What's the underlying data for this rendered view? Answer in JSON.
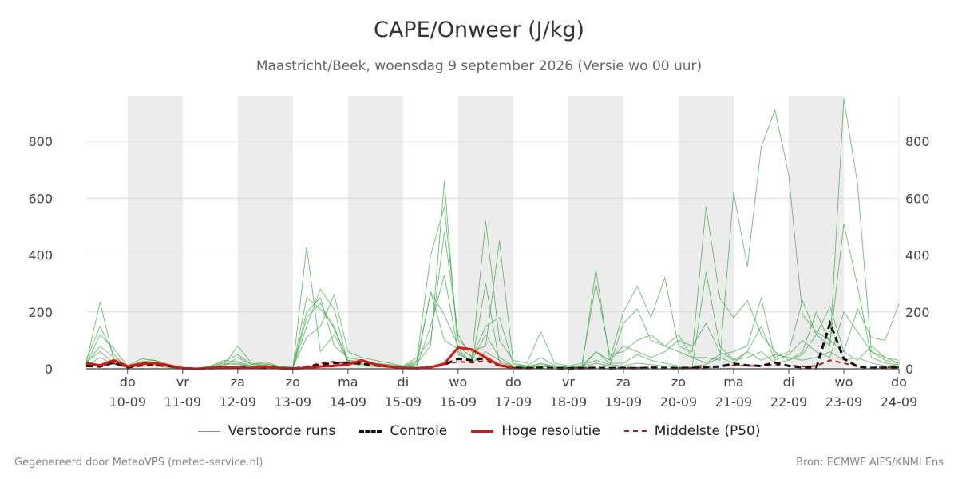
{
  "chart_data": {
    "type": "line",
    "title": "CAPE/Onweer (J/kg)",
    "subtitle": "Maastricht/Beek, woensdag  9 september 2026 (Versie wo 00 uur)",
    "xlabel": "",
    "ylabel": "",
    "ylim": [
      0,
      960
    ],
    "xlim": [
      -0.75,
      14
    ],
    "yticks": [
      0,
      200,
      400,
      600,
      800
    ],
    "grid": true,
    "legend_position": "bottom",
    "x_tick_days": [
      "do",
      "vr",
      "za",
      "zo",
      "ma",
      "di",
      "wo",
      "do",
      "vr",
      "za",
      "zo",
      "ma",
      "di",
      "wo",
      "do"
    ],
    "x_tick_dates": [
      "10-09",
      "11-09",
      "12-09",
      "13-09",
      "14-09",
      "15-09",
      "16-09",
      "17-09",
      "18-09",
      "19-09",
      "20-09",
      "21-09",
      "22-09",
      "23-09",
      "24-09"
    ],
    "shaded_days": [
      0,
      2,
      4,
      6,
      8,
      10,
      12
    ],
    "series": [
      {
        "name": "Controle",
        "style": "dashed",
        "color": "#111111",
        "x": [
          -0.75,
          -0.5,
          -0.25,
          0,
          0.25,
          0.5,
          0.75,
          1,
          1.25,
          1.5,
          1.75,
          2,
          2.25,
          2.5,
          2.75,
          3,
          3.25,
          3.5,
          3.75,
          4,
          4.25,
          4.5,
          4.75,
          5,
          5.25,
          5.5,
          5.75,
          6,
          6.25,
          6.5,
          6.75,
          7,
          7.25,
          7.5,
          7.75,
          8,
          8.25,
          8.5,
          8.75,
          9,
          9.25,
          9.5,
          9.75,
          10,
          10.25,
          10.5,
          10.75,
          11,
          11.25,
          11.5,
          11.75,
          12,
          12.25,
          12.5,
          12.75,
          13,
          13.25,
          13.5,
          13.75,
          14
        ],
        "values": [
          10,
          8,
          22,
          5,
          12,
          14,
          10,
          2,
          0,
          2,
          3,
          5,
          3,
          6,
          2,
          1,
          4,
          15,
          20,
          22,
          18,
          12,
          8,
          3,
          2,
          6,
          15,
          35,
          30,
          38,
          12,
          3,
          2,
          4,
          2,
          1,
          2,
          3,
          2,
          3,
          2,
          4,
          3,
          2,
          3,
          6,
          8,
          18,
          12,
          10,
          22,
          10,
          5,
          4,
          160,
          35,
          8,
          3,
          4,
          6
        ]
      },
      {
        "name": "Hoge resolutie",
        "style": "solid",
        "color": "#e0140d",
        "x": [
          -0.75,
          -0.5,
          -0.25,
          0,
          0.25,
          0.5,
          0.75,
          1,
          1.25,
          1.5,
          1.75,
          2,
          2.25,
          2.5,
          2.75,
          3,
          3.25,
          3.5,
          3.75,
          4,
          4.25,
          4.5,
          4.75,
          5,
          5.25,
          5.5,
          5.75,
          6,
          6.25,
          6.5,
          6.75,
          7
        ],
        "values": [
          20,
          12,
          30,
          8,
          18,
          20,
          12,
          2,
          0,
          3,
          6,
          4,
          3,
          8,
          2,
          1,
          3,
          8,
          10,
          15,
          30,
          15,
          8,
          3,
          2,
          5,
          18,
          75,
          68,
          40,
          12,
          4
        ]
      },
      {
        "name": "Middelste (P50)",
        "style": "dashed",
        "color": "#b31b1b",
        "x": [
          -0.75,
          -0.5,
          -0.25,
          0,
          0.25,
          0.5,
          0.75,
          1,
          1.25,
          1.5,
          1.75,
          2,
          2.25,
          2.5,
          2.75,
          3,
          3.25,
          3.5,
          3.75,
          4,
          4.25,
          4.5,
          4.75,
          5,
          5.25,
          5.5,
          5.75,
          6,
          6.25,
          6.5,
          6.75,
          7,
          7.25,
          7.5,
          7.75,
          8,
          8.25,
          8.5,
          8.75,
          9,
          9.25,
          9.5,
          9.75,
          10,
          10.25,
          10.5,
          10.75,
          11,
          11.25,
          11.5,
          11.75,
          12,
          12.25,
          12.5,
          12.75,
          13,
          13.25,
          13.5,
          13.75,
          14
        ],
        "values": [
          15,
          10,
          20,
          6,
          12,
          15,
          10,
          2,
          0,
          2,
          5,
          6,
          4,
          6,
          3,
          2,
          8,
          20,
          25,
          18,
          20,
          12,
          6,
          3,
          2,
          5,
          15,
          25,
          22,
          28,
          10,
          4,
          2,
          4,
          3,
          2,
          3,
          4,
          3,
          4,
          3,
          5,
          4,
          3,
          4,
          6,
          8,
          12,
          10,
          10,
          15,
          12,
          8,
          10,
          30,
          20,
          8,
          4,
          5,
          6
        ]
      },
      {
        "name": "Verstoorde runs",
        "style": "thin",
        "color": "#3aa845",
        "x": [
          -0.75,
          -0.5,
          -0.25,
          0,
          0.25,
          0.5,
          0.75,
          1,
          1.25,
          1.5,
          1.75,
          2,
          2.25,
          2.5,
          2.75,
          3,
          3.25,
          3.5,
          3.75,
          4,
          4.25,
          4.5,
          4.75,
          5,
          5.25,
          5.5,
          5.75,
          6,
          6.25,
          6.5,
          6.75,
          7,
          7.25,
          7.5,
          7.75,
          8,
          8.25,
          8.5,
          8.75,
          9,
          9.25,
          9.5,
          9.75,
          10,
          10.25,
          10.5,
          10.75,
          11,
          11.25,
          11.5,
          11.75,
          12,
          12.25,
          12.5,
          12.75,
          13,
          13.25,
          13.5,
          13.75,
          14
        ],
        "runs": [
          [
            20,
            235,
            30,
            10,
            25,
            30,
            15,
            2,
            0,
            8,
            20,
            15,
            10,
            12,
            5,
            3,
            430,
            60,
            120,
            30,
            20,
            15,
            10,
            5,
            20,
            80,
            660,
            50,
            30,
            120,
            40,
            10,
            5,
            20,
            8,
            5,
            10,
            30,
            15,
            10,
            20,
            15,
            10,
            5,
            10,
            15,
            40,
            20,
            60,
            30,
            50,
            40,
            30,
            40,
            60,
            30,
            40,
            20,
            10,
            15
          ],
          [
            30,
            150,
            50,
            5,
            20,
            25,
            10,
            1,
            0,
            5,
            15,
            80,
            20,
            10,
            8,
            2,
            150,
            280,
            210,
            20,
            15,
            10,
            8,
            4,
            15,
            270,
            100,
            70,
            20,
            300,
            20,
            10,
            8,
            10,
            5,
            3,
            8,
            350,
            30,
            200,
            290,
            180,
            320,
            80,
            60,
            570,
            250,
            180,
            240,
            120,
            60,
            30,
            50,
            120,
            220,
            60,
            30,
            80,
            40,
            20
          ],
          [
            15,
            120,
            70,
            10,
            35,
            30,
            5,
            0,
            0,
            3,
            10,
            40,
            15,
            20,
            5,
            2,
            200,
            250,
            80,
            40,
            30,
            20,
            15,
            8,
            30,
            400,
            570,
            100,
            60,
            80,
            450,
            20,
            10,
            15,
            10,
            5,
            5,
            20,
            10,
            160,
            210,
            100,
            80,
            120,
            40,
            40,
            30,
            620,
            360,
            780,
            910,
            680,
            190,
            130,
            100,
            60,
            210,
            110,
            100,
            230
          ],
          [
            25,
            60,
            20,
            8,
            15,
            15,
            8,
            1,
            0,
            10,
            30,
            25,
            10,
            15,
            10,
            5,
            110,
            150,
            260,
            60,
            40,
            30,
            20,
            10,
            40,
            100,
            480,
            120,
            40,
            520,
            100,
            30,
            20,
            130,
            20,
            10,
            20,
            300,
            50,
            60,
            100,
            120,
            80,
            60,
            40,
            20,
            50,
            60,
            80,
            250,
            40,
            60,
            240,
            120,
            80,
            950,
            650,
            60,
            40,
            30
          ],
          [
            10,
            40,
            15,
            5,
            10,
            10,
            5,
            0,
            0,
            5,
            15,
            20,
            8,
            10,
            5,
            2,
            250,
            210,
            150,
            20,
            10,
            8,
            5,
            3,
            10,
            150,
            330,
            60,
            20,
            60,
            30,
            8,
            5,
            8,
            5,
            3,
            5,
            60,
            20,
            20,
            50,
            30,
            20,
            10,
            10,
            340,
            80,
            30,
            40,
            60,
            20,
            30,
            60,
            200,
            90,
            510,
            290,
            40,
            20,
            15
          ],
          [
            18,
            80,
            40,
            12,
            20,
            20,
            10,
            2,
            0,
            6,
            25,
            50,
            15,
            25,
            8,
            3,
            180,
            230,
            140,
            30,
            25,
            18,
            12,
            6,
            25,
            270,
            190,
            80,
            40,
            150,
            180,
            15,
            10,
            40,
            12,
            6,
            12,
            60,
            30,
            80,
            60,
            40,
            60,
            100,
            80,
            160,
            60,
            30,
            60,
            150,
            30,
            50,
            100,
            60,
            40,
            200,
            130,
            60,
            30,
            20
          ]
        ]
      }
    ]
  },
  "legend": {
    "runs": "Verstoorde runs",
    "control": "Controle",
    "hires": "Hoge resolutie",
    "p50": "Middelste (P50)"
  },
  "footer": {
    "left": "Gegenereerd door MeteoVPS (meteo-service.nl)",
    "right": "Bron: ECMWF AIFS/KNMI Ens"
  }
}
